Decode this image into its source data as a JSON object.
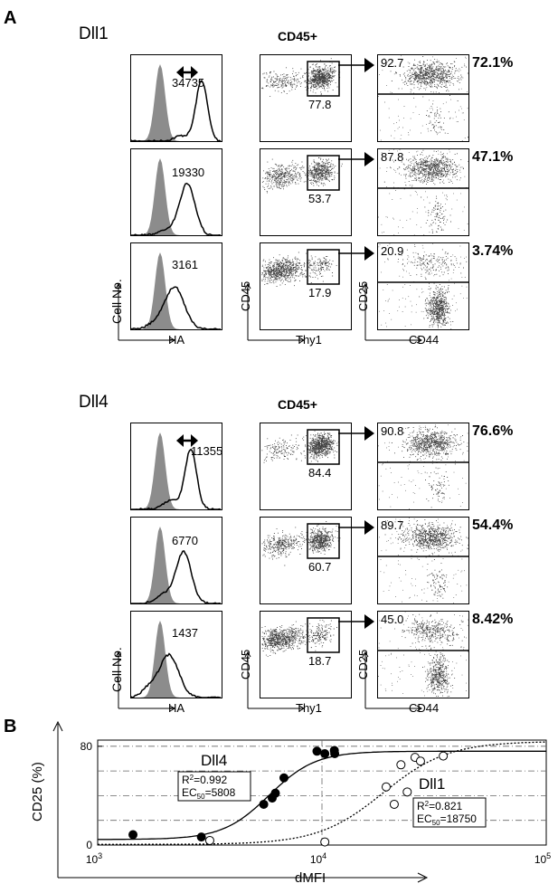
{
  "panel_a": {
    "letter": "A",
    "groups": [
      {
        "ligand": "Dll1",
        "gate_header": "CD45+",
        "rows": [
          {
            "mfi": "34735",
            "thy1_gate": "77.8",
            "cd25_gate": "92.7",
            "percent": "72.1%"
          },
          {
            "mfi": "19330",
            "thy1_gate": "53.7",
            "cd25_gate": "87.8",
            "percent": "47.1%"
          },
          {
            "mfi": "3161",
            "thy1_gate": "17.9",
            "cd25_gate": "20.9",
            "percent": "3.74%"
          }
        ],
        "axes": {
          "hist_y": "Cell No.",
          "hist_x": "HA",
          "dot1_y": "CD45",
          "dot1_x": "Thy1",
          "dot2_y": "CD25",
          "dot2_x": "CD44"
        }
      },
      {
        "ligand": "Dll4",
        "gate_header": "CD45+",
        "rows": [
          {
            "mfi": "11355",
            "thy1_gate": "84.4",
            "cd25_gate": "90.8",
            "percent": "76.6%"
          },
          {
            "mfi": "6770",
            "thy1_gate": "60.7",
            "cd25_gate": "89.7",
            "percent": "54.4%"
          },
          {
            "mfi": "1437",
            "thy1_gate": "18.7",
            "cd25_gate": "45.0",
            "percent": "8.42%"
          }
        ],
        "axes": {
          "hist_y": "Cell No.",
          "hist_x": "HA",
          "dot1_y": "CD45",
          "dot1_x": "Thy1",
          "dot2_y": "CD25",
          "dot2_x": "CD44"
        }
      }
    ]
  },
  "panel_b": {
    "letter": "B",
    "chart_data": {
      "type": "scatter",
      "xlabel": "dMFI",
      "ylabel": "CD25 (%)",
      "x_scale": "log",
      "xlim": [
        1000,
        100000
      ],
      "ylim": [
        0,
        85
      ],
      "x_ticks": [
        "10",
        "10",
        "10"
      ],
      "x_tick_exponents": [
        "3",
        "4",
        "5"
      ],
      "y_ticks": [
        "0",
        "80"
      ],
      "grid": true,
      "series": [
        {
          "name": "Dll4",
          "marker": "filled-circle",
          "fit": "solid",
          "fit_r2": "R",
          "fit_r2_sup": "2",
          "fit_r2_value": "=0.992",
          "fit_ec": "EC",
          "fit_ec_sub": "50",
          "fit_ec_value": "=5808",
          "x": [
            1437,
            2900,
            5500,
            6000,
            6200,
            6770,
            9500,
            10300,
            11355,
            11400
          ],
          "y": [
            8.4,
            6.5,
            33,
            38,
            42,
            54.4,
            76,
            74,
            76.6,
            74
          ]
        },
        {
          "name": "Dll1",
          "marker": "open-circle",
          "fit": "dotted",
          "fit_r2": "R",
          "fit_r2_sup": "2",
          "fit_r2_value": "=0.821",
          "fit_ec": "EC",
          "fit_ec_sub": "50",
          "fit_ec_value": "=18750",
          "x": [
            3161,
            10300,
            19330,
            21000,
            22500,
            24000,
            26000,
            27500,
            34735
          ],
          "y": [
            3.7,
            2.5,
            47.1,
            33,
            65,
            43,
            71,
            68,
            72.1
          ]
        }
      ]
    }
  }
}
